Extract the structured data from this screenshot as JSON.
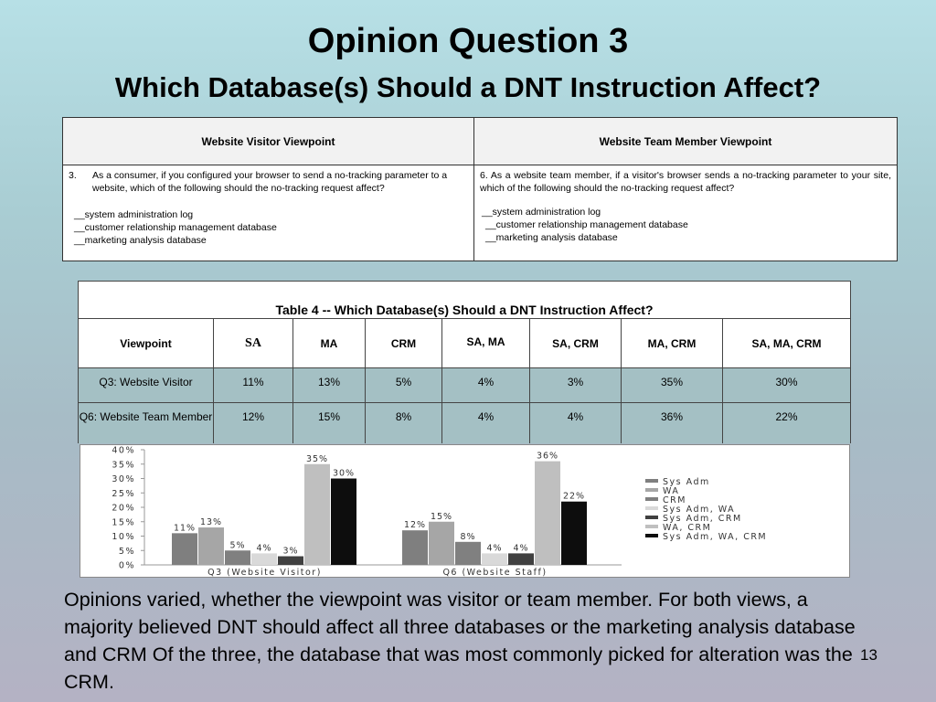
{
  "slide": {
    "title": "Opinion Question 3",
    "subtitle": "Which Database(s) Should a DNT Instruction Affect?",
    "page_number": "13",
    "body": "Opinions varied, whether the viewpoint was visitor or team member.  For both views, a majority believed DNT should affect all three databases or the marketing analysis database and CRM  Of the three, the database that was most commonly picked for alteration was the CRM."
  },
  "question_table": {
    "headers": [
      "Website Visitor Viewpoint",
      "Website Team Member Viewpoint"
    ],
    "left": {
      "number": "3.",
      "text": "As a consumer, if you configured your browser to send a no-tracking parameter to a website, which of the following should the no-tracking request affect?",
      "options": [
        "__system administration log",
        "__customer relationship management database",
        "__marketing analysis database"
      ]
    },
    "right": {
      "text": "6. As a website team member, if a visitor's browser sends a no-tracking parameter to your site, which of the following should the no-tracking request affect?",
      "options": [
        "__system administration log",
        "__customer relationship management database",
        "__marketing analysis database"
      ]
    }
  },
  "results_table": {
    "caption": "Table 4 -- Which Database(s) Should a DNT Instruction Affect?",
    "headers": [
      "Viewpoint",
      "SA",
      "MA",
      "CRM",
      "SA, MA",
      "SA, CRM",
      "MA, CRM",
      "SA, MA, CRM"
    ],
    "rows": [
      [
        "Q3: Website Visitor",
        "11%",
        "13%",
        "5%",
        "4%",
        "3%",
        "35%",
        "30%"
      ],
      [
        "Q6: Website Team Member",
        "12%",
        "15%",
        "8%",
        "4%",
        "4%",
        "36%",
        "22%"
      ]
    ]
  },
  "chart_data": {
    "type": "bar",
    "categories": [
      "Q3 (Website Visitor)",
      "Q6 (Website Staff)"
    ],
    "series": [
      {
        "name": "Sys Adm",
        "values": [
          11,
          12
        ],
        "color": "#7f7f7f"
      },
      {
        "name": "WA",
        "values": [
          13,
          15
        ],
        "color": "#a6a6a6"
      },
      {
        "name": "CRM",
        "values": [
          5,
          8
        ],
        "color": "#808080"
      },
      {
        "name": "Sys Adm, WA",
        "values": [
          4,
          4
        ],
        "color": "#d9d9d9"
      },
      {
        "name": "Sys Adm, CRM",
        "values": [
          3,
          4
        ],
        "color": "#404040"
      },
      {
        "name": "WA, CRM",
        "values": [
          35,
          36
        ],
        "color": "#bfbfbf"
      },
      {
        "name": "Sys Adm, WA, CRM",
        "values": [
          30,
          22
        ],
        "color": "#0d0d0d"
      }
    ],
    "data_labels": [
      [
        "11%",
        "13%",
        "5%",
        "4%",
        "3%",
        "35%",
        "30%"
      ],
      [
        "12%",
        "15%",
        "8%",
        "4%",
        "4%",
        "36%",
        "22%"
      ]
    ],
    "ylim": [
      0,
      40
    ],
    "yticks": [
      "0%",
      "5%",
      "10%",
      "15%",
      "20%",
      "25%",
      "30%",
      "35%",
      "40%"
    ],
    "legend_position": "right",
    "grid": false
  }
}
